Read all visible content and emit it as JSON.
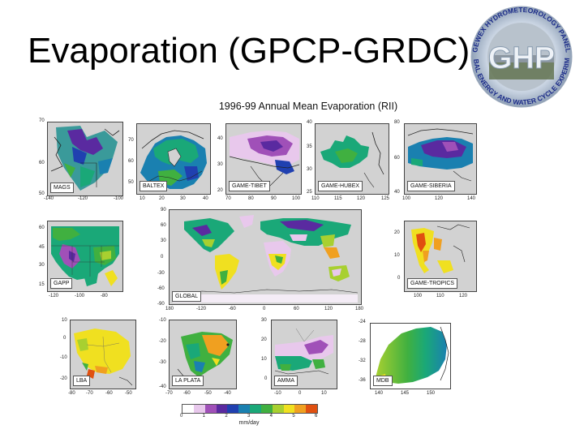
{
  "slide_title": "Evaporation (GPCP-GRDC)",
  "logo": {
    "center_text": "GHP",
    "ring_text_top": "GEWEX HYDROMETEOROLOGY PANEL",
    "ring_text_bottom": "GLOBAL ENERGY AND WATER CYCLE EXPERIMENT"
  },
  "figure_title": "1996-99 Annual Mean Evaporation (RII)",
  "panels": [
    {
      "id": "mags",
      "label": "MAGS",
      "x_ticks": [
        "-140",
        "-120",
        "-100"
      ],
      "y_ticks": [
        "70",
        "60",
        "50"
      ]
    },
    {
      "id": "baltex",
      "label": "BALTEX",
      "x_ticks": [
        "10",
        "20",
        "30",
        "40"
      ],
      "y_ticks": [
        "70",
        "60",
        "50"
      ]
    },
    {
      "id": "tibet",
      "label": "GAME-TIBET",
      "x_ticks": [
        "70",
        "80",
        "90",
        "100"
      ],
      "y_ticks": [
        "40",
        "30",
        "20"
      ]
    },
    {
      "id": "hubex",
      "label": "GAME-HUBEX",
      "x_ticks": [
        "110",
        "115",
        "120",
        "125"
      ],
      "y_ticks": [
        "40",
        "35",
        "30",
        "25"
      ]
    },
    {
      "id": "siberia",
      "label": "GAME-SIBERIA",
      "x_ticks": [
        "100",
        "120",
        "140"
      ],
      "y_ticks": [
        "80",
        "60",
        "40"
      ]
    },
    {
      "id": "gapp",
      "label": "GAPP",
      "x_ticks": [
        "-120",
        "-100",
        "-80"
      ],
      "y_ticks": [
        "60",
        "45",
        "30",
        "15"
      ]
    },
    {
      "id": "global",
      "label": "GLOBAL",
      "x_ticks": [
        "180",
        "-120",
        "-60",
        "0",
        "60",
        "120",
        "180"
      ],
      "y_ticks": [
        "90",
        "60",
        "30",
        "0",
        "-30",
        "-60",
        "-90"
      ]
    },
    {
      "id": "tropics",
      "label": "GAME-TROPICS",
      "x_ticks": [
        "100",
        "110",
        "120"
      ],
      "y_ticks": [
        "20",
        "10",
        "0"
      ]
    },
    {
      "id": "lba",
      "label": "LBA",
      "x_ticks": [
        "-80",
        "-70",
        "-60",
        "-50"
      ],
      "y_ticks": [
        "10",
        "0",
        "-10",
        "-20"
      ]
    },
    {
      "id": "laplata",
      "label": "LA PLATA",
      "x_ticks": [
        "-70",
        "-60",
        "-50",
        "-40"
      ],
      "y_ticks": [
        "-10",
        "-20",
        "-30",
        "-40"
      ]
    },
    {
      "id": "amma",
      "label": "AMMA",
      "x_ticks": [
        "-10",
        "0",
        "10"
      ],
      "y_ticks": [
        "30",
        "20",
        "10",
        "0"
      ]
    },
    {
      "id": "mdb",
      "label": "MDB",
      "x_ticks": [
        "140",
        "145",
        "150"
      ],
      "y_ticks": [
        "-24",
        "-28",
        "-32",
        "-36"
      ]
    }
  ],
  "colorbar": {
    "ticks": [
      "0",
      "1",
      "2",
      "3",
      "4",
      "5",
      "6"
    ],
    "unit": "mm/day",
    "colors": [
      "#ffffff",
      "#e8c8ec",
      "#a050b8",
      "#5a2aa0",
      "#2040b0",
      "#1a80b0",
      "#1aa878",
      "#40b040",
      "#a8d030",
      "#f0e020",
      "#f0a020",
      "#e05010"
    ]
  }
}
